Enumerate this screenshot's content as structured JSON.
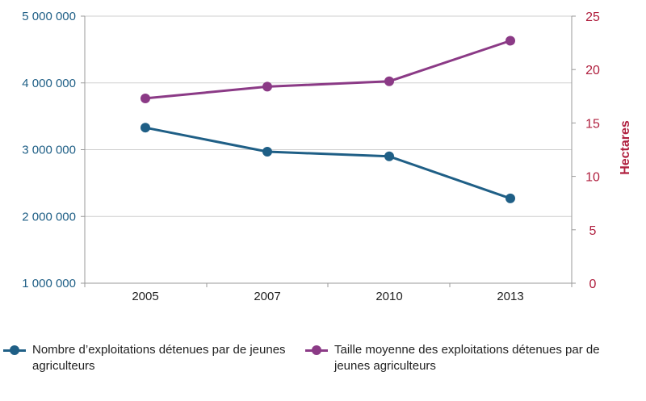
{
  "chart_data": {
    "type": "line",
    "categories": [
      "2005",
      "2007",
      "2010",
      "2013"
    ],
    "series": [
      {
        "name": "Nombre d’exploitations détenues par de jeunes agriculteurs",
        "axis": "left",
        "color": "#1f5f86",
        "values": [
          3330000,
          2970000,
          2900000,
          2270000
        ]
      },
      {
        "name": "Taille moyenne des exploitations détenues par de jeunes agriculteurs",
        "axis": "right",
        "color": "#8b3a86",
        "values": [
          17.3,
          18.4,
          18.9,
          22.7
        ]
      }
    ],
    "y_left": {
      "ylim": [
        1000000,
        5000000
      ],
      "ticks": [
        1000000,
        2000000,
        3000000,
        4000000,
        5000000
      ],
      "tick_labels": [
        "1 000 000",
        "2 000 000",
        "3 000 000",
        "4 000 000",
        "5 000 000"
      ],
      "color": "#1f5f86"
    },
    "y_right": {
      "label": "Hectares",
      "ylim": [
        0,
        25
      ],
      "ticks": [
        0,
        5,
        10,
        15,
        20,
        25
      ],
      "tick_labels": [
        "0",
        "5",
        "10",
        "15",
        "20",
        "25"
      ],
      "color": "#b0203f"
    },
    "grid": "horizontal",
    "legend_position": "bottom"
  },
  "legend": {
    "item1": "Nombre d’exploitations détenues par de jeunes agriculteurs",
    "item2": "Taille moyenne des exploitations détenues par de jeunes agriculteurs"
  }
}
